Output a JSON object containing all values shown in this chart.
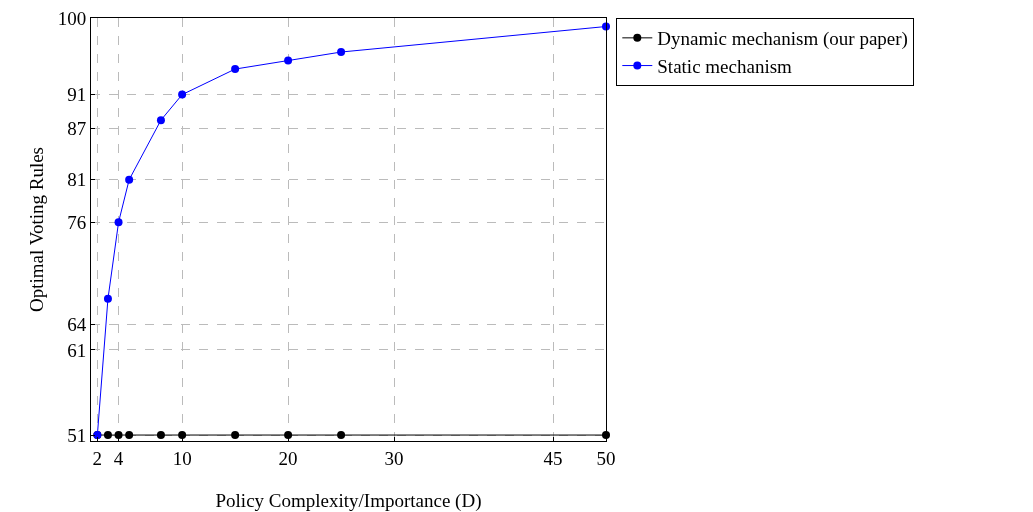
{
  "chart_data": {
    "type": "line",
    "xlabel": "Policy Complexity/Importance (D)",
    "ylabel": "Optimal Voting Rules",
    "x": [
      2,
      3,
      4,
      5,
      8,
      10,
      15,
      20,
      25,
      50
    ],
    "series": [
      {
        "name": "Dynamic mechanism (our paper)",
        "color": "#000000",
        "values": [
          51,
          51,
          51,
          51,
          51,
          51,
          51,
          51,
          51,
          51
        ]
      },
      {
        "name": "Static mechanism",
        "color": "#0000ff",
        "values": [
          51,
          67,
          76,
          81,
          88,
          91,
          94,
          95,
          96,
          99
        ]
      }
    ],
    "xlim": [
      1.4,
      50
    ],
    "xticks": [
      2,
      4,
      10,
      20,
      30,
      45,
      50
    ],
    "ylim": [
      50.3,
      100
    ],
    "yticks": [
      51,
      61,
      64,
      76,
      81,
      87,
      91,
      100
    ],
    "grid": true,
    "legend": "top right",
    "marker": "circle",
    "line_style": "solid"
  }
}
